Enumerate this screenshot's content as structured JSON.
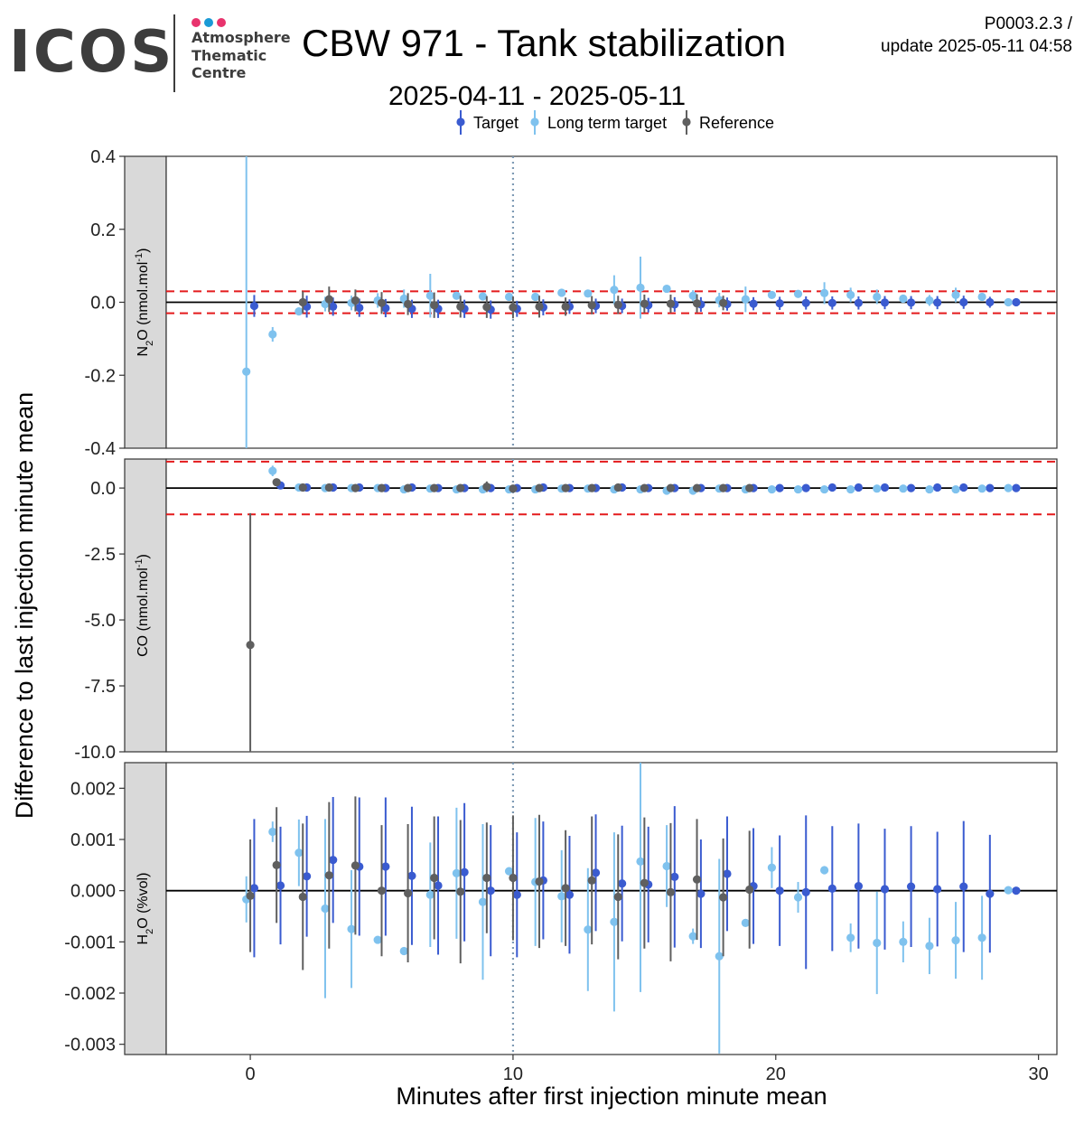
{
  "logo": {
    "wordmark": "ICOS",
    "line1": "Atmosphere",
    "line2": "Thematic",
    "line3": "Centre",
    "dot_colors": [
      "#e8336d",
      "#1a9ad6",
      "#e8336d"
    ]
  },
  "header": {
    "title": "CBW 971 - Tank stabilization",
    "subtitle": "2025-04-11 - 2025-05-11",
    "version": "P0003.2.3 /",
    "update": "update  2025-05-11 04:58"
  },
  "chart_data": {
    "type": "scatter",
    "xlabel": "Minutes after first injection minute mean",
    "ylabel": "Difference to last injection minute mean",
    "xlim": [
      -3.2,
      30.7
    ],
    "x_ticks": [
      0,
      10,
      20,
      30
    ],
    "vline_x": 10,
    "legend_position": "top",
    "series": [
      {
        "name": "Target",
        "color": "#3a5bd0"
      },
      {
        "name": "Long term target",
        "color": "#7fc2ee"
      },
      {
        "name": "Reference",
        "color": "#5f5f5f"
      }
    ],
    "panels": [
      {
        "strip_main": "N",
        "strip_sub": "2",
        "strip_rest": "O (nmol.mol",
        "strip_sup": "-1",
        "strip_end": ")",
        "ylim": [
          -0.4,
          0.4
        ],
        "y_ticks": [
          -0.4,
          -0.2,
          0.0,
          0.2,
          0.4
        ],
        "y_tick_labels": [
          "-0.4",
          "-0.2",
          "0.0",
          "0.2",
          "0.4"
        ],
        "thresholds": [
          0.03,
          -0.03
        ],
        "series": [
          {
            "name": "Target",
            "x": [
              0.15,
              2.15,
              3.15,
              4.15,
              5.15,
              6.15,
              7.15,
              8.15,
              9.15,
              10.15,
              11.15,
              12.15,
              13.15,
              14.15,
              15.15,
              16.15,
              17.15,
              18.15,
              19.15,
              20.15,
              21.15,
              22.15,
              23.15,
              24.15,
              25.15,
              26.15,
              27.15,
              28.15,
              29.15
            ],
            "y": [
              -0.01,
              -0.012,
              -0.012,
              -0.015,
              -0.016,
              -0.018,
              -0.018,
              -0.018,
              -0.02,
              -0.018,
              -0.014,
              -0.012,
              -0.01,
              -0.01,
              -0.008,
              -0.006,
              -0.006,
              -0.005,
              -0.004,
              -0.003,
              -0.002,
              -0.002,
              -0.002,
              -0.001,
              -0.001,
              -0.001,
              0.0,
              0.0,
              0.0
            ],
            "err": [
              0.03,
              0.03,
              0.025,
              0.025,
              0.025,
              0.025,
              0.025,
              0.025,
              0.025,
              0.022,
              0.022,
              0.02,
              0.02,
              0.02,
              0.02,
              0.02,
              0.02,
              0.018,
              0.018,
              0.018,
              0.018,
              0.018,
              0.018,
              0.018,
              0.018,
              0.018,
              0.018,
              0.015,
              0.01
            ]
          },
          {
            "name": "Long term target",
            "x": [
              -0.15,
              0.85,
              1.85,
              2.85,
              3.85,
              4.85,
              5.85,
              6.85,
              7.85,
              8.85,
              9.85,
              10.85,
              11.85,
              12.85,
              13.85,
              14.85,
              15.85,
              16.85,
              17.85,
              18.85,
              19.85,
              20.85,
              21.85,
              22.85,
              23.85,
              24.85,
              25.85,
              26.85,
              27.85,
              28.85
            ],
            "y": [
              -0.19,
              -0.088,
              -0.025,
              -0.005,
              -0.002,
              0.005,
              0.01,
              0.018,
              0.018,
              0.016,
              0.015,
              0.015,
              0.026,
              0.024,
              0.034,
              0.04,
              0.037,
              0.018,
              0.006,
              0.008,
              0.02,
              0.023,
              0.025,
              0.02,
              0.015,
              0.01,
              0.005,
              0.02,
              0.015,
              0.0
            ],
            "err": [
              0.6,
              0.02,
              0.01,
              0.02,
              0.02,
              0.02,
              0.025,
              0.06,
              0.01,
              0.01,
              0.01,
              0.01,
              0.005,
              0.005,
              0.04,
              0.085,
              0.005,
              0.015,
              0.02,
              0.035,
              0.005,
              0.005,
              0.03,
              0.02,
              0.02,
              0.01,
              0.015,
              0.02,
              0.01,
              0.005
            ]
          },
          {
            "name": "Reference",
            "x": [
              2.0,
              3.0,
              4.0,
              5.0,
              6.0,
              7.0,
              8.0,
              9.0,
              10.0,
              11.0,
              12.0,
              13.0,
              14.0,
              15.0,
              16.0,
              17.0,
              18.0
            ],
            "y": [
              0.0,
              0.008,
              0.005,
              -0.002,
              -0.005,
              -0.008,
              -0.012,
              -0.013,
              -0.014,
              -0.012,
              -0.012,
              -0.008,
              -0.007,
              -0.004,
              -0.004,
              -0.003,
              -0.002
            ],
            "err": [
              0.03,
              0.035,
              0.03,
              0.03,
              0.03,
              0.035,
              0.03,
              0.03,
              0.03,
              0.03,
              0.025,
              0.025,
              0.025,
              0.025,
              0.025,
              0.025,
              0.02
            ]
          }
        ]
      },
      {
        "strip_main": "CO (nmol.mol",
        "strip_sub": "",
        "strip_rest": "",
        "strip_sup": "-1",
        "strip_end": ")",
        "ylim": [
          -10.0,
          1.1
        ],
        "y_ticks": [
          -10.0,
          -7.5,
          -5.0,
          -2.5,
          0.0
        ],
        "y_tick_labels": [
          "-10.0",
          "-7.5",
          "-5.0",
          "-2.5",
          "0.0"
        ],
        "thresholds": [
          1.0,
          -1.0
        ],
        "series": [
          {
            "name": "Target",
            "x": [
              1.15,
              2.15,
              3.15,
              4.15,
              5.15,
              6.15,
              7.15,
              8.15,
              9.15,
              10.15,
              11.15,
              12.15,
              13.15,
              14.15,
              15.15,
              16.15,
              17.15,
              18.15,
              19.15,
              20.15,
              21.15,
              22.15,
              23.15,
              24.15,
              25.15,
              26.15,
              27.15,
              28.15,
              29.15
            ],
            "y": [
              0.1,
              0.02,
              0.02,
              0.02,
              0.0,
              0.02,
              0.0,
              0.0,
              0.0,
              0.0,
              0.02,
              0.0,
              0.0,
              0.02,
              0.0,
              0.0,
              0.0,
              0.0,
              0.0,
              0.0,
              0.0,
              0.02,
              0.02,
              0.02,
              0.0,
              0.02,
              0.02,
              0.0,
              0.0
            ],
            "err": [
              0.1,
              0.1,
              0.1,
              0.1,
              0.1,
              0.1,
              0.1,
              0.1,
              0.1,
              0.1,
              0.1,
              0.1,
              0.1,
              0.1,
              0.1,
              0.1,
              0.1,
              0.1,
              0.1,
              0.1,
              0.1,
              0.1,
              0.1,
              0.1,
              0.1,
              0.1,
              0.1,
              0.1,
              0.1
            ]
          },
          {
            "name": "Long term target",
            "x": [
              0.85,
              1.85,
              2.85,
              3.85,
              4.85,
              5.85,
              6.85,
              7.85,
              8.85,
              9.85,
              10.85,
              11.85,
              12.85,
              13.85,
              14.85,
              15.85,
              16.85,
              17.85,
              18.85,
              19.85,
              20.85,
              21.85,
              22.85,
              23.85,
              24.85,
              25.85,
              26.85,
              27.85,
              28.85
            ],
            "y": [
              0.65,
              0.02,
              0.0,
              0.0,
              0.0,
              -0.05,
              -0.02,
              -0.05,
              -0.05,
              -0.05,
              -0.05,
              -0.02,
              -0.02,
              -0.05,
              -0.05,
              -0.1,
              -0.1,
              -0.02,
              -0.05,
              -0.05,
              -0.05,
              -0.05,
              -0.05,
              -0.02,
              -0.02,
              -0.05,
              -0.05,
              -0.02,
              0.0
            ],
            "err": [
              0.2,
              0.1,
              0.1,
              0.1,
              0.1,
              0.1,
              0.1,
              0.1,
              0.1,
              0.1,
              0.1,
              0.1,
              0.1,
              0.1,
              0.1,
              0.1,
              0.1,
              0.1,
              0.1,
              0.1,
              0.1,
              0.1,
              0.1,
              0.1,
              0.1,
              0.1,
              0.1,
              0.1,
              0.1
            ]
          },
          {
            "name": "Reference",
            "x": [
              0.0,
              1.0,
              2.0,
              3.0,
              4.0,
              5.0,
              6.0,
              7.0,
              8.0,
              9.0,
              10.0,
              11.0,
              12.0,
              13.0,
              14.0,
              15.0,
              16.0,
              17.0,
              18.0,
              19.0
            ],
            "y": [
              -5.95,
              0.22,
              0.02,
              0.02,
              0.0,
              0.0,
              0.0,
              0.0,
              0.0,
              0.05,
              -0.02,
              0.0,
              0.0,
              0.0,
              0.02,
              0.0,
              0.0,
              0.0,
              0.0,
              0.0
            ],
            "err": [
              5.0,
              0.1,
              0.1,
              0.1,
              0.1,
              0.1,
              0.1,
              0.1,
              0.1,
              0.2,
              0.1,
              0.1,
              0.1,
              0.1,
              0.1,
              0.1,
              0.1,
              0.1,
              0.1,
              0.1
            ]
          }
        ]
      },
      {
        "strip_main": "H",
        "strip_sub": "2",
        "strip_rest": "O (%vol)",
        "strip_sup": "",
        "strip_end": "",
        "ylim": [
          -0.0032,
          0.0025
        ],
        "y_ticks": [
          -0.003,
          -0.002,
          -0.001,
          0.0,
          0.001,
          0.002
        ],
        "y_tick_labels": [
          "-0.003",
          "-0.002",
          "-0.001",
          "0.000",
          "0.001",
          "0.002"
        ],
        "thresholds": [],
        "series": [
          {
            "name": "Target",
            "x": [
              0.15,
              1.15,
              2.15,
              3.15,
              4.15,
              5.15,
              6.15,
              7.15,
              8.15,
              9.15,
              10.15,
              11.15,
              12.15,
              13.15,
              14.15,
              15.15,
              16.15,
              17.15,
              18.15,
              19.15,
              20.15,
              21.15,
              22.15,
              23.15,
              24.15,
              25.15,
              26.15,
              27.15,
              28.15,
              29.15
            ],
            "y": [
              5e-05,
              0.0001,
              0.00028,
              0.0006,
              0.00047,
              0.00047,
              0.00029,
              0.0001,
              0.00036,
              0.0,
              -8e-05,
              0.0002,
              -8e-05,
              0.00035,
              0.00014,
              0.00012,
              0.00027,
              -6e-05,
              0.00033,
              9e-05,
              0.0,
              -3e-05,
              4e-05,
              9e-05,
              3e-05,
              8e-05,
              3e-05,
              8e-05,
              -6e-05,
              0.0
            ],
            "err": [
              0.00135,
              0.00115,
              0.00118,
              0.00123,
              0.00135,
              0.00135,
              0.00135,
              0.00135,
              0.00135,
              0.00128,
              0.00122,
              0.00115,
              0.00115,
              0.00114,
              0.00113,
              0.00113,
              0.00138,
              0.00106,
              0.00112,
              0.00113,
              0.00108,
              0.0015,
              0.00122,
              0.00122,
              0.00118,
              0.00118,
              0.00112,
              0.00128,
              0.00115,
              1e-05
            ]
          },
          {
            "name": "Long term target",
            "x": [
              -0.15,
              0.85,
              1.85,
              2.85,
              3.85,
              4.85,
              5.85,
              6.85,
              7.85,
              8.85,
              9.85,
              10.85,
              11.85,
              12.85,
              13.85,
              14.85,
              15.85,
              16.85,
              17.85,
              18.85,
              19.85,
              20.85,
              21.85,
              22.85,
              23.85,
              24.85,
              25.85,
              26.85,
              27.85,
              28.85
            ],
            "y": [
              -0.00017,
              0.00115,
              0.00074,
              -0.00035,
              -0.00075,
              -0.00096,
              -0.00118,
              -8e-05,
              0.00034,
              -0.00022,
              0.00038,
              0.00017,
              -0.00011,
              -0.00076,
              -0.00061,
              0.00057,
              0.00048,
              -0.00089,
              -0.00128,
              -0.00063,
              0.00045,
              -0.00013,
              0.0004,
              -0.00092,
              -0.00102,
              -0.001,
              -0.00108,
              -0.00097,
              -0.00092,
              1e-05
            ],
            "err": [
              0.00045,
              0.0002,
              0.00065,
              0.00175,
              0.00115,
              2e-05,
              2e-05,
              0.00102,
              0.00128,
              0.00152,
              2e-05,
              0.00125,
              0.0009,
              0.0012,
              0.00175,
              0.00255,
              0.0008,
              0.00015,
              0.0019,
              2e-05,
              0.0004,
              0.0003,
              8e-05,
              0.00028,
              0.001,
              0.0004,
              0.00055,
              0.00075,
              0.00082,
              2e-05
            ]
          },
          {
            "name": "Reference",
            "x": [
              0.0,
              1.0,
              2.0,
              3.0,
              4.0,
              5.0,
              6.0,
              7.0,
              8.0,
              9.0,
              10.0,
              11.0,
              12.0,
              13.0,
              14.0,
              15.0,
              16.0,
              17.0,
              18.0,
              19.0
            ],
            "y": [
              -0.0001,
              0.0005,
              -0.00012,
              0.0003,
              0.00049,
              0.0,
              -5e-05,
              0.00025,
              -2e-05,
              0.00025,
              0.00025,
              0.00018,
              5e-05,
              0.0002,
              -0.00012,
              0.00015,
              -3e-05,
              0.00022,
              -0.00013,
              2e-05
            ],
            "err": [
              0.0011,
              0.00113,
              0.00143,
              0.00143,
              0.00135,
              0.00128,
              0.00135,
              0.0012,
              0.0014,
              0.00108,
              0.00122,
              0.0013,
              0.00113,
              0.00125,
              0.00122,
              0.00128,
              0.00135,
              0.00118,
              0.00115,
              0.00115
            ]
          }
        ]
      }
    ]
  }
}
